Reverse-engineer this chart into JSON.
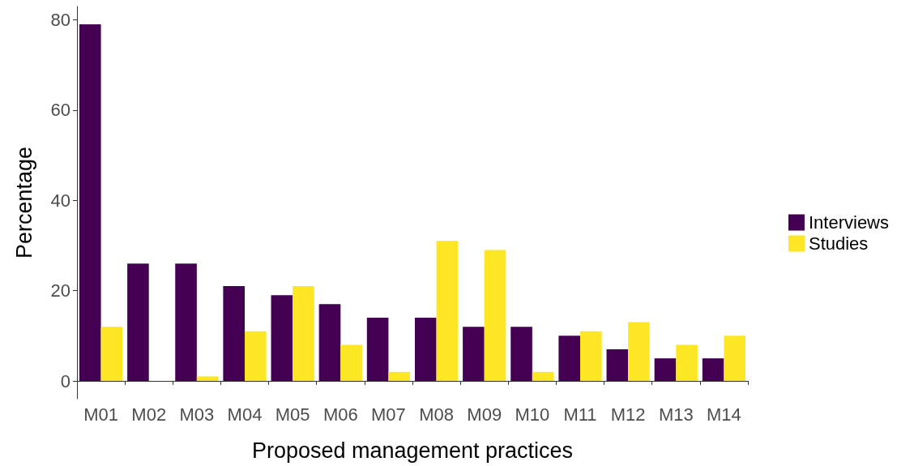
{
  "chart_data": {
    "type": "bar",
    "xlabel": "Proposed management practices",
    "ylabel": "Percentage",
    "categories": [
      "M01",
      "M02",
      "M03",
      "M04",
      "M05",
      "M06",
      "M07",
      "M08",
      "M09",
      "M10",
      "M11",
      "M12",
      "M13",
      "M14"
    ],
    "series": [
      {
        "name": "Interviews",
        "color": "#440154",
        "values": [
          79,
          26,
          26,
          21,
          19,
          17,
          14,
          14,
          12,
          12,
          10,
          7,
          5,
          5
        ]
      },
      {
        "name": "Studies",
        "color": "#fde725",
        "values": [
          12,
          0,
          1,
          11,
          21,
          8,
          2,
          31,
          29,
          2,
          11,
          13,
          8,
          10
        ]
      }
    ],
    "ylim": [
      -3.95,
      82.95
    ],
    "yticks": [
      0,
      20,
      40,
      60,
      80
    ],
    "grid": false,
    "legend": "right"
  }
}
